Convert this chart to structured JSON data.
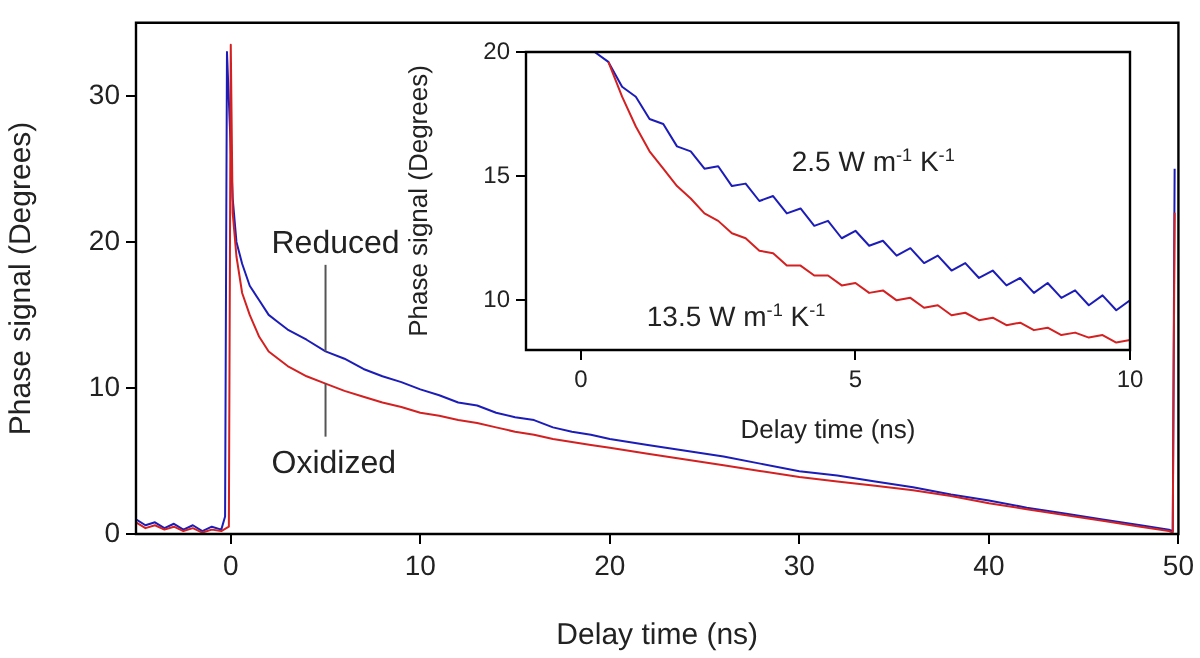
{
  "chart_data": [
    {
      "type": "line",
      "xlabel": "Delay time (ns)",
      "ylabel": "Phase signal (Degrees)",
      "xlim": [
        -5,
        50
      ],
      "xticks": [
        0,
        10,
        20,
        30,
        40,
        50
      ],
      "ylim": [
        0,
        35
      ],
      "yticks": [
        0,
        10,
        20,
        30
      ],
      "legend": false,
      "marker": "none",
      "line_style": "solid",
      "series": [
        {
          "name": "Reduced",
          "color": "#1c1cb8",
          "x": [
            -5,
            -4.5,
            -4,
            -3.5,
            -3,
            -2.5,
            -2,
            -1.5,
            -1,
            -0.5,
            -0.3,
            -0.2,
            0.1,
            0.3,
            0.6,
            1,
            1.5,
            2,
            2.5,
            3,
            4,
            5,
            6,
            7,
            8,
            9,
            10,
            11,
            12,
            13,
            14,
            15,
            16,
            17,
            18,
            19,
            20,
            22,
            24,
            26,
            28,
            30,
            32,
            34,
            36,
            38,
            40,
            42,
            44,
            46,
            48,
            49.5,
            49.7,
            49.8
          ],
          "values": [
            1,
            0.6,
            0.8,
            0.4,
            0.7,
            0.3,
            0.6,
            0.2,
            0.5,
            0.3,
            1.2,
            33,
            23,
            20,
            18.5,
            17,
            16,
            15,
            14.5,
            14,
            13.3,
            12.5,
            12,
            11.3,
            10.8,
            10.4,
            9.9,
            9.5,
            9,
            8.8,
            8.3,
            8,
            7.8,
            7.3,
            7,
            6.8,
            6.5,
            6.1,
            5.7,
            5.3,
            4.8,
            4.3,
            4,
            3.6,
            3.2,
            2.7,
            2.3,
            1.8,
            1.4,
            1,
            0.6,
            0.3,
            0.2,
            25
          ]
        },
        {
          "name": "Oxidized",
          "color": "#d42020",
          "x": [
            -5,
            -4.5,
            -4,
            -3.5,
            -3,
            -2.5,
            -2,
            -1.5,
            -1,
            -0.5,
            -0.1,
            0,
            0.1,
            0.3,
            0.6,
            1,
            1.5,
            2,
            2.5,
            3,
            4,
            5,
            6,
            7,
            8,
            9,
            10,
            11,
            12,
            13,
            14,
            15,
            16,
            17,
            18,
            19,
            20,
            22,
            24,
            26,
            28,
            30,
            32,
            34,
            36,
            38,
            40,
            42,
            44,
            46,
            48,
            49.5,
            49.7,
            49.8
          ],
          "values": [
            0.8,
            0.4,
            0.6,
            0.3,
            0.5,
            0.2,
            0.4,
            0.1,
            0.3,
            0.2,
            0.5,
            33.5,
            22,
            19,
            16.5,
            15,
            13.5,
            12.5,
            12,
            11.5,
            10.8,
            10.3,
            9.8,
            9.4,
            9,
            8.7,
            8.3,
            8.1,
            7.8,
            7.6,
            7.3,
            7,
            6.8,
            6.5,
            6.3,
            6.1,
            5.9,
            5.5,
            5.1,
            4.7,
            4.3,
            3.9,
            3.6,
            3.3,
            3,
            2.6,
            2.1,
            1.7,
            1.3,
            0.9,
            0.5,
            0.2,
            0.1,
            22
          ]
        }
      ]
    },
    {
      "type": "line",
      "xlabel": "Delay time (ns)",
      "ylabel": "Phase signal (Degrees)",
      "xlim": [
        -1,
        10
      ],
      "xticks": [
        0,
        5,
        10
      ],
      "ylim": [
        8,
        20
      ],
      "yticks": [
        10,
        15,
        20
      ],
      "legend": false,
      "marker": "none",
      "line_style": "solid",
      "series": [
        {
          "name": "2.5 W m$^{-1}$ K$^{-1}$",
          "color": "#1c1cb8",
          "x": [
            0.25,
            0.5,
            0.75,
            1,
            1.25,
            1.5,
            1.75,
            2,
            2.25,
            2.5,
            2.75,
            3,
            3.25,
            3.5,
            3.75,
            4,
            4.25,
            4.5,
            4.75,
            5,
            5.25,
            5.5,
            5.75,
            6,
            6.25,
            6.5,
            6.75,
            7,
            7.25,
            7.5,
            7.75,
            8,
            8.25,
            8.5,
            8.75,
            9,
            9.25,
            9.5,
            9.75,
            10
          ],
          "values": [
            20,
            19.6,
            18.6,
            18.2,
            17.3,
            17.1,
            16.2,
            16,
            15.3,
            15.4,
            14.6,
            14.7,
            14,
            14.2,
            13.5,
            13.7,
            13,
            13.2,
            12.5,
            12.8,
            12.2,
            12.4,
            11.8,
            12.1,
            11.5,
            11.8,
            11.2,
            11.5,
            10.9,
            11.2,
            10.6,
            10.9,
            10.3,
            10.7,
            10.1,
            10.4,
            9.8,
            10.2,
            9.6,
            10
          ]
        },
        {
          "name": "13.5 W m$^{-1}$ K$^{-1}$",
          "color": "#d42020",
          "x": [
            0.5,
            0.75,
            1,
            1.25,
            1.5,
            1.75,
            2,
            2.25,
            2.5,
            2.75,
            3,
            3.25,
            3.5,
            3.75,
            4,
            4.25,
            4.5,
            4.75,
            5,
            5.25,
            5.5,
            5.75,
            6,
            6.25,
            6.5,
            6.75,
            7,
            7.25,
            7.5,
            7.75,
            8,
            8.25,
            8.5,
            8.75,
            9,
            9.25,
            9.5,
            9.75,
            10
          ],
          "values": [
            19.6,
            18.2,
            17,
            16,
            15.3,
            14.6,
            14.1,
            13.5,
            13.2,
            12.7,
            12.5,
            12,
            11.9,
            11.4,
            11.4,
            11,
            11,
            10.6,
            10.7,
            10.3,
            10.4,
            10,
            10.1,
            9.7,
            9.8,
            9.4,
            9.5,
            9.2,
            9.3,
            9,
            9.1,
            8.8,
            8.9,
            8.6,
            8.7,
            8.5,
            8.6,
            8.3,
            8.4
          ]
        }
      ]
    }
  ]
}
